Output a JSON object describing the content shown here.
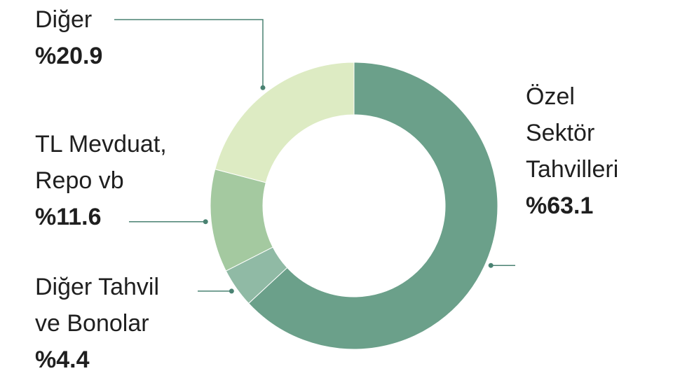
{
  "chart_data": {
    "type": "pie",
    "variant": "donut",
    "slices": [
      {
        "label_lines": [
          "Özel",
          "Sektör",
          "Tahvilleri"
        ],
        "value_label": "%63.1",
        "value": 63.1,
        "color": "#6ba08a"
      },
      {
        "label_lines": [
          "Diğer Tahvil",
          "ve Bonolar"
        ],
        "value_label": "%4.4",
        "value": 4.4,
        "color": "#90baa5"
      },
      {
        "label_lines": [
          "TL Mevduat,",
          "Repo vb"
        ],
        "value_label": "%11.6",
        "value": 11.6,
        "color": "#a4c9a0"
      },
      {
        "label_lines": [
          "Diğer"
        ],
        "value_label": "%20.9",
        "value": 20.9,
        "color": "#ddebc3"
      }
    ],
    "leader_color": "#4a8272",
    "legend": "none"
  }
}
